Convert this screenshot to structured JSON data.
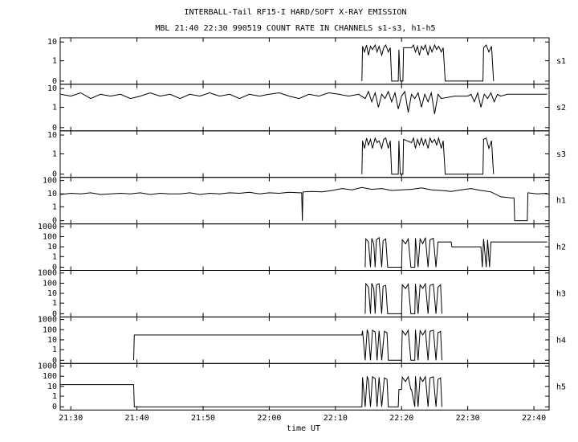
{
  "title": "INTERBALL-Tail RF15-I HARD/SOFT X-RAY EMISSION",
  "subtitle": "MBL 21:40 22:30 990519  COUNT RATE IN CHANNELS s1-s3, h1-h5",
  "xlabel": "time UT",
  "xlim": [
    1288.4,
    1362.3
  ],
  "xticks": [
    {
      "value": 1290,
      "label": "21:30"
    },
    {
      "value": 1300,
      "label": "21:40"
    },
    {
      "value": 1310,
      "label": "21:50"
    },
    {
      "value": 1320,
      "label": "22:00"
    },
    {
      "value": 1330,
      "label": "22:10"
    },
    {
      "value": 1340,
      "label": "22:20"
    },
    {
      "value": 1350,
      "label": "22:30"
    },
    {
      "value": 1360,
      "label": "22:40"
    }
  ],
  "chart_data": [
    {
      "type": "line",
      "label": "s1",
      "color": "#000000",
      "ylim": [
        0,
        15
      ],
      "yticks": [
        0,
        1,
        10
      ],
      "x": [
        1334,
        1334.1,
        1334.4,
        1334.7,
        1335,
        1335.3,
        1335.6,
        1336,
        1336.3,
        1336.6,
        1337,
        1337.3,
        1337.6,
        1338,
        1338.3,
        1338.5,
        1339.5,
        1339.6,
        1339.8,
        1340.2,
        1340.3,
        1341.5,
        1341.8,
        1342.1,
        1342.4,
        1342.7,
        1343,
        1343.3,
        1343.6,
        1344,
        1344.3,
        1344.6,
        1345,
        1345.3,
        1345.6,
        1346,
        1346.3,
        1346.6,
        1352.3,
        1352.4,
        1352.8,
        1353.2,
        1353.6,
        1353.9
      ],
      "values": [
        0,
        6,
        3,
        7,
        2,
        6,
        4,
        7,
        3,
        6,
        2,
        5,
        7,
        3,
        5,
        0,
        0,
        4,
        0,
        0,
        5,
        5,
        7,
        3,
        6,
        2,
        6,
        4,
        7,
        2,
        6,
        3,
        7,
        4,
        6,
        3,
        5,
        0,
        0,
        5,
        7,
        3,
        6,
        0
      ]
    },
    {
      "type": "line",
      "label": "s2",
      "color": "#000000",
      "ylim": [
        0,
        15
      ],
      "yticks": [
        0,
        1,
        10
      ],
      "x": [
        1288.5,
        1290,
        1291.5,
        1293,
        1294.5,
        1296,
        1297.5,
        1299,
        1300.5,
        1302,
        1303.5,
        1305,
        1306.5,
        1308,
        1309.5,
        1311,
        1312.5,
        1314,
        1315.5,
        1317,
        1318.5,
        1320,
        1321.5,
        1323,
        1324.5,
        1326,
        1327.5,
        1329,
        1330.5,
        1332,
        1333.5,
        1334.5,
        1335,
        1335.5,
        1336,
        1336.5,
        1337,
        1337.5,
        1338,
        1338.5,
        1339,
        1339.5,
        1340,
        1340.5,
        1341,
        1341.5,
        1342,
        1342.5,
        1343,
        1343.5,
        1344,
        1344.5,
        1345,
        1345.5,
        1346,
        1348,
        1350,
        1350.5,
        1351,
        1351.5,
        1352,
        1352.5,
        1353,
        1353.5,
        1354,
        1354.5,
        1355,
        1356,
        1358,
        1360,
        1362
      ],
      "values": [
        5,
        4,
        6,
        3,
        5,
        4,
        5,
        3,
        4,
        6,
        4,
        5,
        3,
        5,
        4,
        6,
        4,
        5,
        3,
        5,
        4,
        5,
        6,
        4,
        3,
        5,
        4,
        6,
        5,
        4,
        5,
        3,
        7,
        2,
        6,
        1,
        5,
        3,
        7,
        2,
        6,
        0.8,
        4,
        7,
        0.5,
        5,
        3,
        6,
        1,
        5,
        2,
        6,
        0.4,
        5,
        3,
        4,
        4,
        5,
        2,
        6,
        1,
        5,
        3,
        6,
        2,
        5,
        4,
        5,
        5,
        5,
        5
      ]
    },
    {
      "type": "line",
      "label": "s3",
      "color": "#000000",
      "ylim": [
        0,
        15
      ],
      "yticks": [
        0,
        1,
        10
      ],
      "x": [
        1334,
        1334.1,
        1334.4,
        1334.7,
        1335,
        1335.3,
        1335.6,
        1336,
        1336.3,
        1336.6,
        1337,
        1337.3,
        1337.6,
        1338,
        1338.3,
        1338.5,
        1339.5,
        1339.6,
        1339.8,
        1340.2,
        1340.3,
        1341.5,
        1341.8,
        1342.1,
        1342.4,
        1342.7,
        1343,
        1343.3,
        1343.6,
        1344,
        1344.3,
        1344.6,
        1345,
        1345.3,
        1345.6,
        1346,
        1346.3,
        1346.6,
        1352.3,
        1352.4,
        1352.8,
        1353.2,
        1353.6,
        1353.9
      ],
      "values": [
        0,
        5,
        2,
        7,
        3,
        6,
        2,
        7,
        4,
        5,
        2,
        6,
        7,
        2,
        5,
        0,
        0,
        5,
        0,
        0,
        6,
        4,
        7,
        2,
        6,
        3,
        7,
        3,
        6,
        2,
        7,
        4,
        6,
        3,
        7,
        2,
        5,
        0,
        0,
        6,
        7,
        2,
        5,
        0
      ]
    },
    {
      "type": "line",
      "label": "h1",
      "color": "#000000",
      "ylim": [
        0,
        150
      ],
      "yticks": [
        0,
        1,
        10,
        100
      ],
      "x": [
        1288.5,
        1290,
        1291.5,
        1293,
        1294.5,
        1296,
        1297.5,
        1299,
        1300.5,
        1302,
        1303.5,
        1305,
        1306.5,
        1308,
        1309.5,
        1311,
        1312.5,
        1314,
        1315.5,
        1317,
        1318.5,
        1320,
        1321.5,
        1323,
        1324.5,
        1324.9,
        1325,
        1325.1,
        1326.5,
        1328,
        1329.5,
        1331,
        1332.5,
        1334,
        1335.5,
        1337,
        1338.5,
        1340,
        1341.5,
        1343,
        1344.5,
        1346,
        1347.5,
        1349,
        1350.5,
        1352,
        1353.5,
        1355,
        1356.5,
        1357,
        1357.1,
        1359,
        1359.1,
        1360.5,
        1362
      ],
      "values": [
        9,
        11,
        10,
        12,
        9,
        10,
        11,
        10,
        12,
        9,
        11,
        10,
        10,
        12,
        9,
        11,
        10,
        12,
        11,
        13,
        10,
        12,
        11,
        13,
        12,
        12,
        0,
        14,
        15,
        14,
        18,
        25,
        20,
        30,
        22,
        25,
        18,
        20,
        22,
        28,
        20,
        18,
        15,
        20,
        25,
        18,
        14,
        6,
        5,
        5,
        0,
        0,
        12,
        10,
        11
      ]
    },
    {
      "type": "line",
      "label": "h2",
      "color": "#000000",
      "ylim": [
        0,
        1500
      ],
      "yticks": [
        0,
        1,
        10,
        100,
        1000
      ],
      "x": [
        1334.5,
        1334.6,
        1335,
        1335.3,
        1335.5,
        1335.8,
        1336,
        1336.2,
        1336.6,
        1337,
        1337.2,
        1337.6,
        1337.9,
        1340,
        1340.1,
        1340.6,
        1341,
        1341.4,
        1342,
        1342.1,
        1342.5,
        1342.8,
        1343.2,
        1343.6,
        1344,
        1344.3,
        1344.8,
        1345.2,
        1345.5,
        1347.5,
        1347.6,
        1352,
        1352.2,
        1352.4,
        1352.8,
        1353,
        1353.3,
        1353.5,
        1362
      ],
      "values": [
        0,
        60,
        30,
        0,
        70,
        20,
        0,
        50,
        80,
        0,
        40,
        60,
        0,
        0,
        50,
        20,
        60,
        0,
        0,
        70,
        0,
        60,
        20,
        80,
        0,
        50,
        70,
        0,
        30,
        30,
        10,
        10,
        0,
        60,
        0,
        50,
        0,
        30,
        30
      ]
    },
    {
      "type": "line",
      "label": "h3",
      "color": "#000000",
      "ylim": [
        0,
        1500
      ],
      "yticks": [
        0,
        1,
        10,
        100,
        1000
      ],
      "x": [
        1334.5,
        1334.6,
        1335,
        1335.3,
        1335.5,
        1335.8,
        1336,
        1336.2,
        1336.6,
        1337,
        1337.2,
        1337.6,
        1337.9,
        1340,
        1340.1,
        1340.6,
        1341,
        1341.4,
        1342,
        1342.1,
        1342.5,
        1342.8,
        1343.2,
        1343.6,
        1344,
        1344.3,
        1344.8,
        1345.2,
        1345.5,
        1345.9,
        1346.1
      ],
      "values": [
        0,
        90,
        40,
        0,
        100,
        30,
        0,
        70,
        90,
        0,
        50,
        60,
        0,
        0,
        70,
        30,
        80,
        0,
        0,
        90,
        0,
        70,
        30,
        90,
        0,
        60,
        80,
        0,
        40,
        70,
        0
      ]
    },
    {
      "type": "line",
      "label": "h4",
      "color": "#000000",
      "ylim": [
        0,
        1500
      ],
      "yticks": [
        0,
        1,
        10,
        100,
        1000
      ],
      "x": [
        1299.5,
        1299.6,
        1334,
        1334.1,
        1334.5,
        1334.8,
        1335,
        1335.3,
        1335.6,
        1336,
        1336.3,
        1336.6,
        1337,
        1337.4,
        1337.8,
        1338,
        1340,
        1340.1,
        1340.6,
        1341,
        1341.4,
        1342,
        1342.1,
        1342.5,
        1342.8,
        1343.2,
        1343.6,
        1344,
        1344.3,
        1344.8,
        1345.2,
        1345.5,
        1345.9,
        1346.1
      ],
      "values": [
        0,
        30,
        30,
        80,
        0,
        100,
        40,
        0,
        90,
        60,
        0,
        80,
        0,
        70,
        50,
        0,
        0,
        80,
        30,
        90,
        0,
        0,
        100,
        0,
        80,
        30,
        90,
        0,
        70,
        90,
        0,
        50,
        70,
        0
      ]
    },
    {
      "type": "line",
      "label": "h5",
      "color": "#000000",
      "ylim": [
        0,
        1500
      ],
      "yticks": [
        0,
        1,
        10,
        100,
        1000
      ],
      "x": [
        1288.4,
        1299.5,
        1299.6,
        1334,
        1334.1,
        1334.5,
        1334.8,
        1335,
        1335.3,
        1335.6,
        1336,
        1336.3,
        1336.6,
        1337,
        1337.4,
        1337.8,
        1338,
        1339.5,
        1339.6,
        1340,
        1340.1,
        1340.6,
        1341,
        1341.4,
        1341.5,
        1342,
        1342.1,
        1342.5,
        1342.8,
        1343.2,
        1343.6,
        1344,
        1344.3,
        1344.8,
        1345.2,
        1345.5,
        1345.9,
        1346.1
      ],
      "values": [
        15,
        15,
        0,
        0,
        80,
        0,
        100,
        40,
        0,
        90,
        60,
        0,
        80,
        0,
        70,
        50,
        0,
        0,
        5,
        5,
        80,
        30,
        90,
        5,
        5,
        0,
        100,
        0,
        80,
        30,
        90,
        0,
        70,
        90,
        0,
        50,
        70,
        0
      ]
    }
  ]
}
